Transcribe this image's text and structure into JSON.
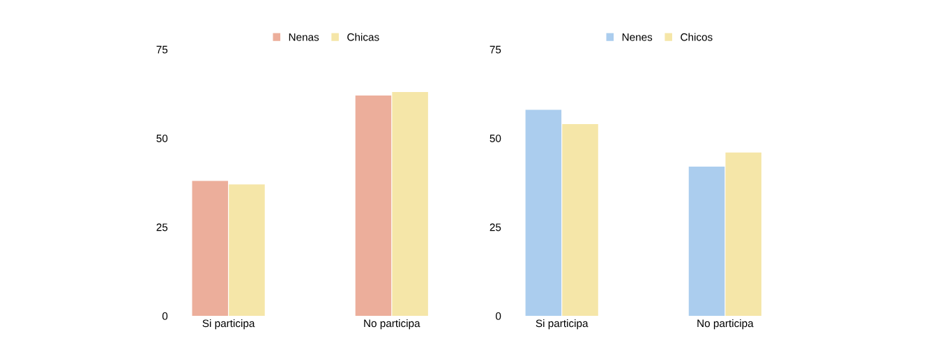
{
  "chart_data": [
    {
      "type": "bar",
      "categories": [
        "Si participa",
        "No participa"
      ],
      "series": [
        {
          "name": "Nenas",
          "color": "#ecae9b",
          "values": [
            38,
            62
          ]
        },
        {
          "name": "Chicas",
          "color": "#f5e6a8",
          "values": [
            37,
            63
          ]
        }
      ],
      "ylim": [
        0,
        75
      ],
      "yticks": [
        0,
        25,
        50,
        75
      ],
      "grid": false,
      "legend": "top"
    },
    {
      "type": "bar",
      "categories": [
        "Si participa",
        "No participa"
      ],
      "series": [
        {
          "name": "Nenes",
          "color": "#abcdee",
          "values": [
            58,
            42
          ]
        },
        {
          "name": "Chicos",
          "color": "#f5e6a8",
          "values": [
            54,
            46
          ]
        }
      ],
      "ylim": [
        0,
        75
      ],
      "yticks": [
        0,
        25,
        50,
        75
      ],
      "grid": false,
      "legend": "top"
    }
  ]
}
